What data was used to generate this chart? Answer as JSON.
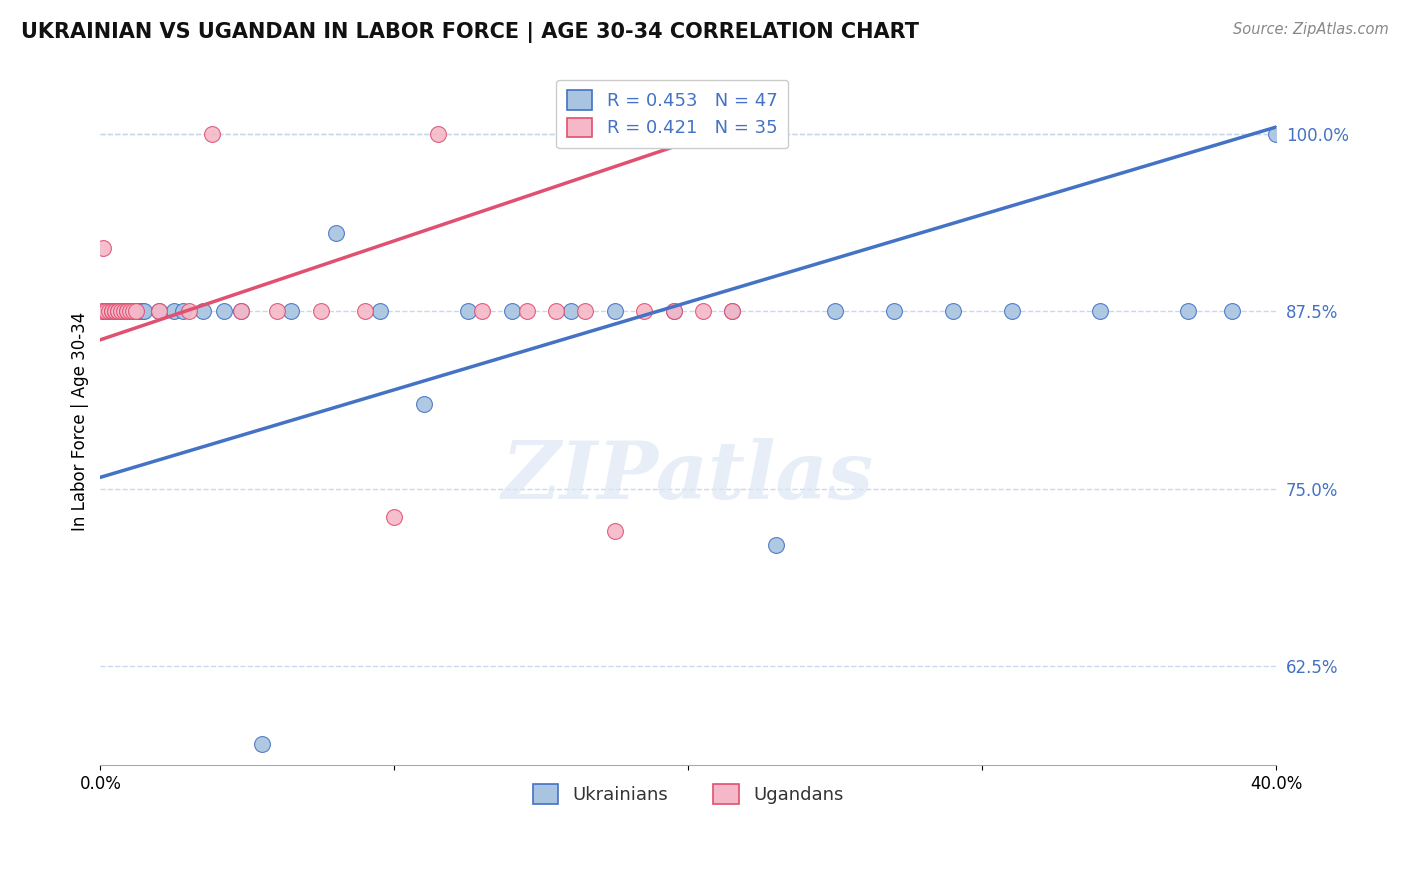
{
  "title": "UKRAINIAN VS UGANDAN IN LABOR FORCE | AGE 30-34 CORRELATION CHART",
  "source": "Source: ZipAtlas.com",
  "ylabel": "In Labor Force | Age 30-34",
  "xlim": [
    0.0,
    0.4
  ],
  "ylim": [
    0.555,
    1.04
  ],
  "yticks": [
    0.625,
    0.75,
    0.875,
    1.0
  ],
  "ytick_labels": [
    "62.5%",
    "75.0%",
    "87.5%",
    "100.0%"
  ],
  "xticks": [
    0.0,
    0.1,
    0.2,
    0.3,
    0.4
  ],
  "xtick_labels": [
    "0.0%",
    "",
    "",
    "",
    "40.0%"
  ],
  "ukrainian_color": "#a8c4e0",
  "ugandan_color": "#f4b8c8",
  "trend_ukrainian_color": "#4472c4",
  "trend_ugandan_color": "#e05070",
  "legend_R_ukrainian": "R = 0.453",
  "legend_N_ukrainian": "N = 47",
  "legend_R_ugandan": "R = 0.421",
  "legend_N_ugandan": "N = 35",
  "watermark": "ZIPatlas",
  "ukrainian_x": [
    0.001,
    0.001,
    0.002,
    0.003,
    0.004,
    0.004,
    0.005,
    0.005,
    0.006,
    0.006,
    0.007,
    0.007,
    0.008,
    0.008,
    0.009,
    0.01,
    0.011,
    0.012,
    0.013,
    0.014,
    0.015,
    0.02,
    0.025,
    0.028,
    0.035,
    0.042,
    0.048,
    0.055,
    0.065,
    0.08,
    0.095,
    0.11,
    0.125,
    0.14,
    0.16,
    0.175,
    0.195,
    0.215,
    0.23,
    0.25,
    0.27,
    0.29,
    0.31,
    0.34,
    0.37,
    0.385,
    0.4
  ],
  "ukrainian_y": [
    0.875,
    0.875,
    0.875,
    0.875,
    0.875,
    0.875,
    0.875,
    0.875,
    0.875,
    0.875,
    0.875,
    0.875,
    0.875,
    0.875,
    0.875,
    0.875,
    0.875,
    0.875,
    0.875,
    0.875,
    0.875,
    0.875,
    0.875,
    0.875,
    0.875,
    0.875,
    0.875,
    0.57,
    0.875,
    0.93,
    0.875,
    0.81,
    0.875,
    0.875,
    0.875,
    0.875,
    0.875,
    0.875,
    0.71,
    0.875,
    0.875,
    0.875,
    0.875,
    0.875,
    0.875,
    0.875,
    1.0
  ],
  "ugandan_x": [
    0.001,
    0.001,
    0.002,
    0.003,
    0.004,
    0.004,
    0.005,
    0.005,
    0.006,
    0.006,
    0.007,
    0.008,
    0.009,
    0.009,
    0.01,
    0.011,
    0.012,
    0.02,
    0.03,
    0.038,
    0.048,
    0.06,
    0.075,
    0.09,
    0.1,
    0.115,
    0.13,
    0.145,
    0.155,
    0.165,
    0.175,
    0.185,
    0.195,
    0.205,
    0.215
  ],
  "ugandan_y": [
    0.875,
    0.92,
    0.875,
    0.875,
    0.875,
    0.875,
    0.875,
    0.875,
    0.875,
    0.875,
    0.875,
    0.875,
    0.875,
    0.875,
    0.875,
    0.875,
    0.875,
    0.875,
    0.875,
    1.0,
    0.875,
    0.875,
    0.875,
    0.875,
    0.73,
    1.0,
    0.875,
    0.875,
    0.875,
    0.875,
    0.72,
    0.875,
    0.875,
    0.875,
    0.875
  ],
  "trend_ukr_x0": 0.0,
  "trend_ukr_x1": 0.4,
  "trend_ukr_y0": 0.758,
  "trend_ukr_y1": 1.005,
  "trend_uga_x0": 0.0,
  "trend_uga_x1": 0.215,
  "trend_uga_y0": 0.855,
  "trend_uga_y1": 1.005
}
